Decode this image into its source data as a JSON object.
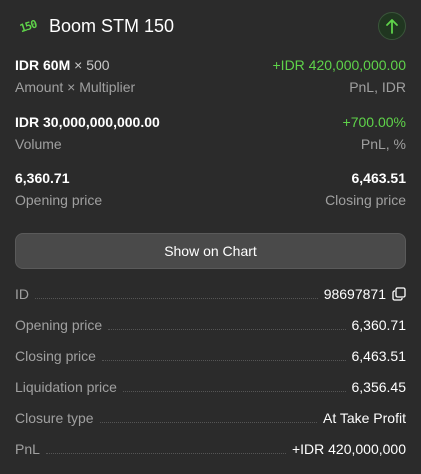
{
  "header": {
    "asset_icon": "boom-150-icon",
    "asset_icon_text": "150",
    "title": "Boom STM 150",
    "direction_icon": "arrow-up-icon"
  },
  "summary": {
    "amount": "IDR 60M",
    "multiplier": "× 500",
    "pnl_value": "+IDR 420,000,000.00",
    "amount_label": "Amount × Multiplier",
    "pnl_label": "PnL, IDR",
    "volume": "IDR 30,000,000,000.00",
    "pnl_percent": "+700.00%",
    "volume_label": "Volume",
    "pnl_percent_label": "PnL, %",
    "opening_price": "6,360.71",
    "closing_price": "6,463.51",
    "opening_label": "Opening price",
    "closing_label": "Closing price"
  },
  "chart_button": {
    "label": "Show on Chart"
  },
  "details": [
    {
      "label": "ID",
      "value": "98697871"
    },
    {
      "label": "Opening price",
      "value": "6,360.71"
    },
    {
      "label": "Closing price",
      "value": "6,463.51"
    },
    {
      "label": "Liquidation price",
      "value": "6,356.45"
    },
    {
      "label": "Closure type",
      "value": "At Take Profit"
    },
    {
      "label": "PnL",
      "value": "+IDR 420,000,000"
    }
  ],
  "colors": {
    "background": "#2b2b2b",
    "accent_green": "#5fd34a",
    "label_gray": "#a0a0a0",
    "button_bg": "#4a4a4a"
  }
}
